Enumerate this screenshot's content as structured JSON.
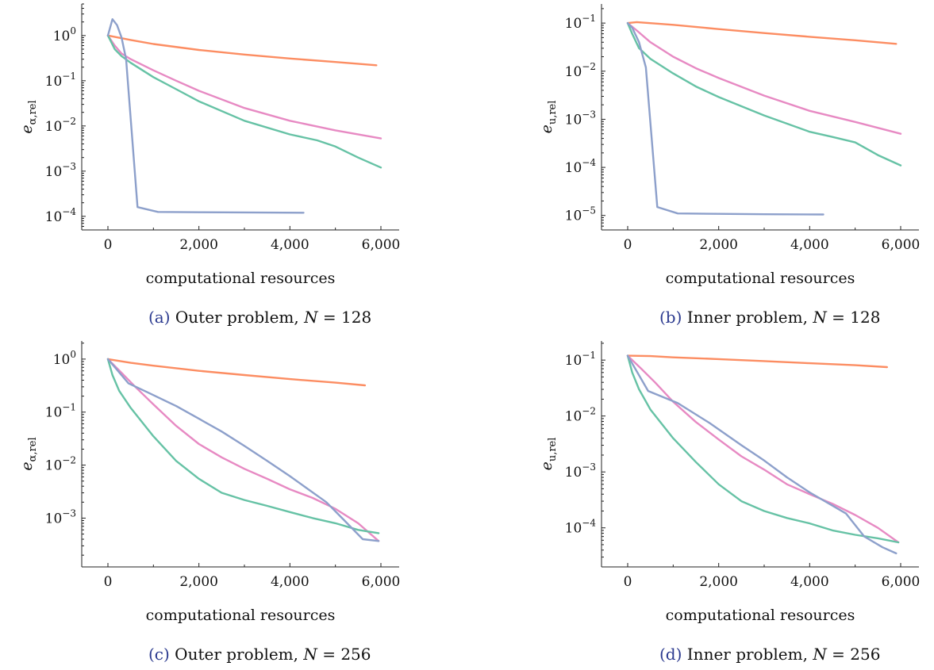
{
  "chart_data": [
    {
      "type": "line",
      "caption": {
        "letter": "(a)",
        "text": "Outer problem, ",
        "var": "N",
        "rest": " = 128"
      },
      "ylabel": {
        "main": "e",
        "sub": "α,rel"
      },
      "xlabel": "computational resources",
      "xlim": [
        0,
        6000
      ],
      "xticks": [
        "0",
        "2,000",
        "4,000",
        "6,000"
      ],
      "yscale": "log",
      "ylim": [
        5e-05,
        5
      ],
      "yticks": [
        {
          "base": "10",
          "exp": "0",
          "value": 1
        },
        {
          "base": "10",
          "exp": "−1",
          "value": 0.1
        },
        {
          "base": "10",
          "exp": "−2",
          "value": 0.01
        },
        {
          "base": "10",
          "exp": "−3",
          "value": 0.001
        },
        {
          "base": "10",
          "exp": "−4",
          "value": 0.0001
        }
      ],
      "series": [
        {
          "color": "#fc8d62",
          "x": [
            0,
            500,
            1000,
            2000,
            3000,
            4000,
            5000,
            5900
          ],
          "y": [
            1.0,
            0.8,
            0.65,
            0.48,
            0.38,
            0.31,
            0.26,
            0.22
          ]
        },
        {
          "color": "#e78ac3",
          "x": [
            0,
            150,
            300,
            500,
            1000,
            1500,
            2000,
            3000,
            4000,
            5000,
            6000
          ],
          "y": [
            1.0,
            0.6,
            0.4,
            0.3,
            0.17,
            0.1,
            0.06,
            0.025,
            0.013,
            0.008,
            0.0053
          ]
        },
        {
          "color": "#66c2a5",
          "x": [
            0,
            150,
            300,
            500,
            1000,
            1500,
            2000,
            3000,
            4000,
            4600,
            5000,
            5500,
            6000
          ],
          "y": [
            1.0,
            0.5,
            0.35,
            0.25,
            0.12,
            0.065,
            0.035,
            0.013,
            0.0065,
            0.0048,
            0.0035,
            0.002,
            0.0012
          ]
        },
        {
          "color": "#8da0cb",
          "x": [
            0,
            100,
            200,
            300,
            400,
            650,
            1100,
            2000,
            3000,
            4300
          ],
          "y": [
            1.0,
            2.3,
            1.7,
            0.9,
            0.3,
            0.00016,
            0.000125,
            0.000123,
            0.000122,
            0.00012
          ]
        }
      ]
    },
    {
      "type": "line",
      "caption": {
        "letter": "(b)",
        "text": "Inner problem, ",
        "var": "N",
        "rest": " = 128"
      },
      "ylabel": {
        "main": "e",
        "sub": "u,rel"
      },
      "xlabel": "computational resources",
      "xlim": [
        0,
        6000
      ],
      "xticks": [
        "0",
        "2,000",
        "4,000",
        "6,000"
      ],
      "yscale": "log",
      "ylim": [
        5e-06,
        0.25
      ],
      "yticks": [
        {
          "base": "10",
          "exp": "−1",
          "value": 0.1
        },
        {
          "base": "10",
          "exp": "−2",
          "value": 0.01
        },
        {
          "base": "10",
          "exp": "−3",
          "value": 0.001
        },
        {
          "base": "10",
          "exp": "−4",
          "value": 0.0001
        },
        {
          "base": "10",
          "exp": "−5",
          "value": 1e-05
        }
      ],
      "series": [
        {
          "color": "#fc8d62",
          "x": [
            0,
            200,
            1000,
            2000,
            3000,
            4000,
            5000,
            5900
          ],
          "y": [
            0.1,
            0.105,
            0.092,
            0.075,
            0.062,
            0.052,
            0.044,
            0.037
          ]
        },
        {
          "color": "#e78ac3",
          "x": [
            0,
            200,
            500,
            1000,
            1500,
            2000,
            3000,
            4000,
            5000,
            6000
          ],
          "y": [
            0.1,
            0.07,
            0.04,
            0.02,
            0.0115,
            0.0072,
            0.0031,
            0.0015,
            0.00088,
            0.0005
          ]
        },
        {
          "color": "#66c2a5",
          "x": [
            0,
            100,
            250,
            500,
            1000,
            1500,
            2000,
            3000,
            4000,
            4500,
            5000,
            5500,
            6000
          ],
          "y": [
            0.1,
            0.06,
            0.03,
            0.018,
            0.009,
            0.0048,
            0.0029,
            0.0012,
            0.00055,
            0.00043,
            0.00033,
            0.00018,
            0.00011
          ]
        },
        {
          "color": "#8da0cb",
          "x": [
            0,
            100,
            250,
            400,
            650,
            1100,
            2000,
            3000,
            4300
          ],
          "y": [
            0.1,
            0.08,
            0.04,
            0.012,
            1.5e-05,
            1.1e-05,
            1.08e-05,
            1.06e-05,
            1.05e-05
          ]
        }
      ]
    },
    {
      "type": "line",
      "caption": {
        "letter": "(c)",
        "text": "Outer problem, ",
        "var": "N",
        "rest": " = 256"
      },
      "ylabel": {
        "main": "e",
        "sub": "α,rel"
      },
      "xlabel": "computational resources",
      "xlim": [
        0,
        6000
      ],
      "xticks": [
        "0",
        "2,000",
        "4,000",
        "6,000"
      ],
      "yscale": "log",
      "ylim": [
        0.00012,
        2.2
      ],
      "yticks": [
        {
          "base": "10",
          "exp": "0",
          "value": 1
        },
        {
          "base": "10",
          "exp": "−1",
          "value": 0.1
        },
        {
          "base": "10",
          "exp": "−2",
          "value": 0.01
        },
        {
          "base": "10",
          "exp": "−3",
          "value": 0.001
        }
      ],
      "series": [
        {
          "color": "#fc8d62",
          "x": [
            0,
            500,
            1000,
            2000,
            3000,
            4000,
            5000,
            5650
          ],
          "y": [
            1.0,
            0.85,
            0.75,
            0.6,
            0.5,
            0.42,
            0.36,
            0.32
          ]
        },
        {
          "color": "#e78ac3",
          "x": [
            0,
            300,
            600,
            1000,
            1500,
            2000,
            2500,
            3000,
            3500,
            4000,
            4500,
            5000,
            5500,
            5950
          ],
          "y": [
            1.0,
            0.55,
            0.3,
            0.14,
            0.055,
            0.025,
            0.014,
            0.0085,
            0.0055,
            0.0035,
            0.0024,
            0.0015,
            0.0008,
            0.00037
          ]
        },
        {
          "color": "#66c2a5",
          "x": [
            0,
            100,
            250,
            500,
            1000,
            1500,
            2000,
            2500,
            3000,
            3500,
            4000,
            4500,
            5000,
            5500,
            5950
          ],
          "y": [
            1.0,
            0.5,
            0.25,
            0.12,
            0.035,
            0.012,
            0.0055,
            0.003,
            0.0022,
            0.0017,
            0.0013,
            0.001,
            0.0008,
            0.0006,
            0.00052
          ]
        },
        {
          "color": "#8da0cb",
          "x": [
            0,
            450,
            900,
            1500,
            2000,
            2500,
            3000,
            3500,
            4000,
            4800,
            5200,
            5600,
            5950
          ],
          "y": [
            1.0,
            0.35,
            0.23,
            0.13,
            0.075,
            0.043,
            0.023,
            0.012,
            0.0062,
            0.002,
            0.0009,
            0.0004,
            0.00037
          ]
        }
      ]
    },
    {
      "type": "line",
      "caption": {
        "letter": "(d)",
        "text": "Inner problem, ",
        "var": "N",
        "rest": " = 256"
      },
      "ylabel": {
        "main": "e",
        "sub": "u,rel"
      },
      "xlabel": "computational resources",
      "xlim": [
        0,
        6000
      ],
      "xticks": [
        "0",
        "2,000",
        "4,000",
        "6,000"
      ],
      "yscale": "log",
      "ylim": [
        2e-05,
        0.22
      ],
      "yticks": [
        {
          "base": "10",
          "exp": "−1",
          "value": 0.1
        },
        {
          "base": "10",
          "exp": "−2",
          "value": 0.01
        },
        {
          "base": "10",
          "exp": "−3",
          "value": 0.001
        },
        {
          "base": "10",
          "exp": "−4",
          "value": 0.0001
        }
      ],
      "series": [
        {
          "color": "#fc8d62",
          "x": [
            0,
            500,
            1000,
            2000,
            3000,
            4000,
            5000,
            5700
          ],
          "y": [
            0.12,
            0.118,
            0.112,
            0.104,
            0.096,
            0.088,
            0.081,
            0.075
          ]
        },
        {
          "color": "#e78ac3",
          "x": [
            0,
            300,
            600,
            1000,
            1500,
            2000,
            2500,
            3000,
            3500,
            4000,
            4500,
            5000,
            5500,
            5950
          ],
          "y": [
            0.12,
            0.07,
            0.04,
            0.018,
            0.0078,
            0.0038,
            0.0019,
            0.0011,
            0.0006,
            0.0004,
            0.00027,
            0.00017,
            0.0001,
            5.5e-05
          ]
        },
        {
          "color": "#66c2a5",
          "x": [
            0,
            100,
            250,
            500,
            1000,
            1500,
            2000,
            2500,
            3000,
            3500,
            4000,
            4500,
            5000,
            5500,
            5950
          ],
          "y": [
            0.12,
            0.06,
            0.03,
            0.013,
            0.004,
            0.0015,
            0.0006,
            0.0003,
            0.0002,
            0.00015,
            0.00012,
            9e-05,
            7.5e-05,
            6.5e-05,
            5.5e-05
          ]
        },
        {
          "color": "#8da0cb",
          "x": [
            0,
            450,
            1100,
            1800,
            2500,
            3000,
            3500,
            4000,
            4800,
            5200,
            5600,
            5900
          ],
          "y": [
            0.12,
            0.028,
            0.017,
            0.0075,
            0.003,
            0.0016,
            0.0008,
            0.00043,
            0.00018,
            7e-05,
            4.5e-05,
            3.5e-05
          ]
        }
      ]
    }
  ]
}
